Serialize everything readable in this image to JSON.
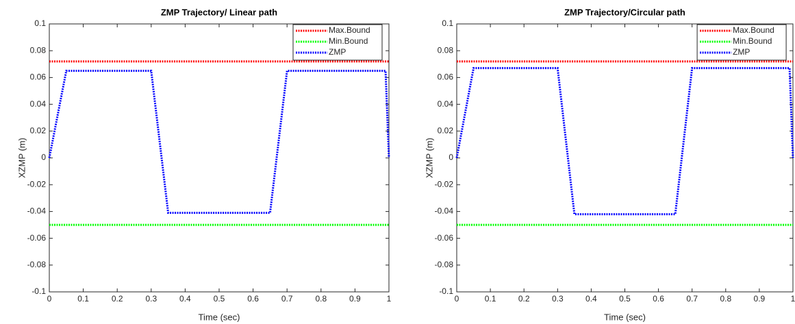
{
  "chart_data": [
    {
      "type": "line",
      "title": "ZMP Trajectory/ Linear path",
      "xlabel": "Time (sec)",
      "ylabel": "XZMP (m)",
      "x": [
        0,
        0.05,
        0.3,
        0.35,
        0.65,
        0.7,
        0.99,
        1
      ],
      "series": [
        {
          "name": "Max.Bound",
          "color": "#ff0000",
          "values": [
            0.072,
            0.072,
            0.072,
            0.072,
            0.072,
            0.072,
            0.072,
            0.072
          ]
        },
        {
          "name": "Min.Bound",
          "color": "#00ff00",
          "values": [
            -0.05,
            -0.05,
            -0.05,
            -0.05,
            -0.05,
            -0.05,
            -0.05,
            -0.05
          ]
        },
        {
          "name": "ZMP",
          "color": "#0000ff",
          "values": [
            0,
            0.065,
            0.065,
            -0.041,
            -0.041,
            0.065,
            0.065,
            0
          ]
        }
      ],
      "xlim": [
        0,
        1
      ],
      "xticks": [
        0,
        0.1,
        0.2,
        0.3,
        0.4,
        0.5,
        0.6,
        0.7,
        0.8,
        0.9,
        1
      ],
      "ylim": [
        -0.1,
        0.1
      ],
      "yticks": [
        -0.1,
        -0.08,
        -0.06,
        -0.04,
        -0.02,
        0,
        0.02,
        0.04,
        0.06,
        0.08,
        0.1
      ],
      "legend": "upper center",
      "grid": false
    },
    {
      "type": "line",
      "title": "ZMP Trajectory/Circular path",
      "xlabel": "Time (sec)",
      "ylabel": "XZMP (m)",
      "x": [
        0,
        0.05,
        0.3,
        0.35,
        0.65,
        0.7,
        0.99,
        1
      ],
      "series": [
        {
          "name": "Max.Bound",
          "color": "#ff0000",
          "values": [
            0.072,
            0.072,
            0.072,
            0.072,
            0.072,
            0.072,
            0.072,
            0.072
          ]
        },
        {
          "name": "Min.Bound",
          "color": "#00ff00",
          "values": [
            -0.05,
            -0.05,
            -0.05,
            -0.05,
            -0.05,
            -0.05,
            -0.05,
            -0.05
          ]
        },
        {
          "name": "ZMP",
          "color": "#0000ff",
          "values": [
            0,
            0.067,
            0.067,
            -0.042,
            -0.042,
            0.067,
            0.067,
            0
          ]
        }
      ],
      "xlim": [
        0,
        1
      ],
      "xticks": [
        0,
        0.1,
        0.2,
        0.3,
        0.4,
        0.5,
        0.6,
        0.7,
        0.8,
        0.9,
        1
      ],
      "ylim": [
        -0.1,
        0.1
      ],
      "yticks": [
        -0.1,
        -0.08,
        -0.06,
        -0.04,
        -0.02,
        0,
        0.02,
        0.04,
        0.06,
        0.08,
        0.1
      ],
      "legend": "upper center",
      "grid": false
    }
  ]
}
